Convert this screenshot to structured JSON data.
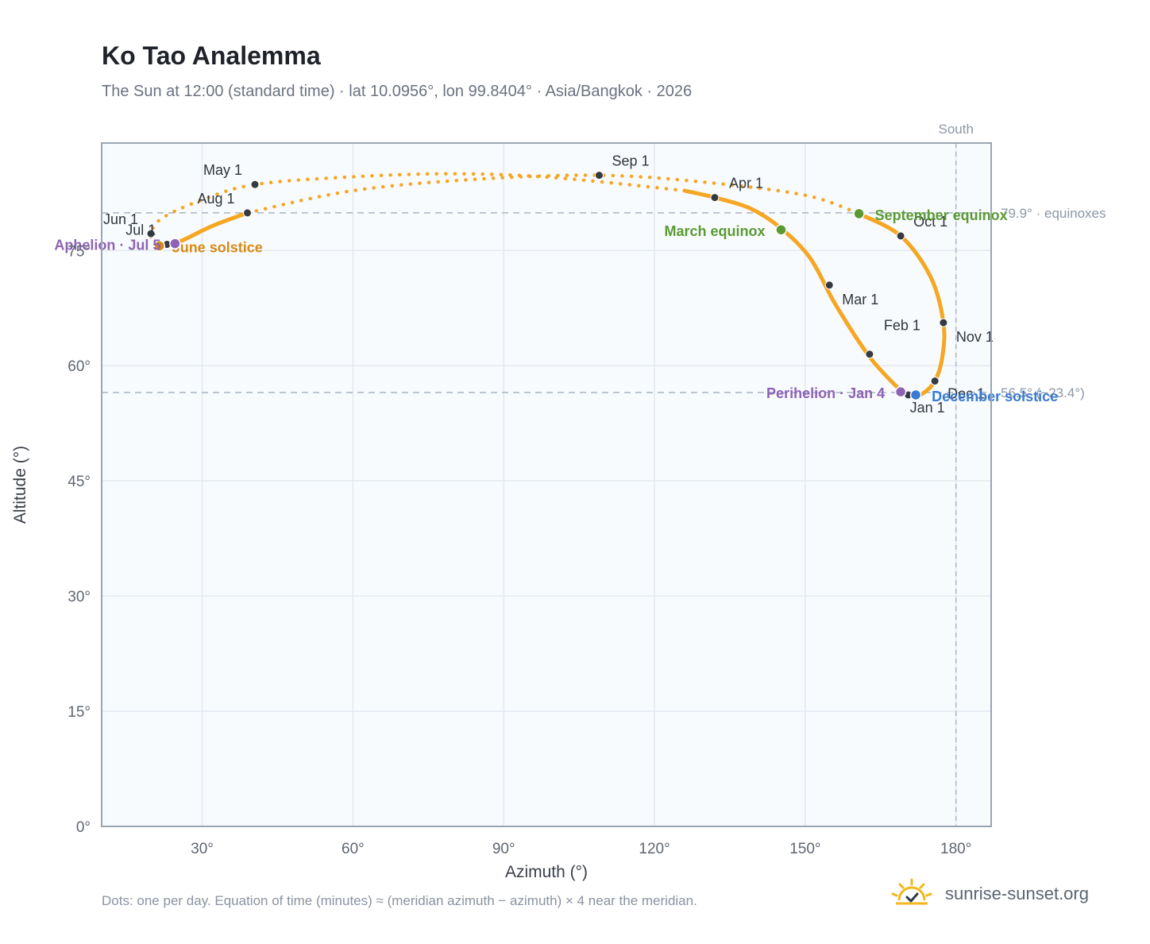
{
  "title": "Ko Tao Analemma",
  "subtitle": "The Sun at 12:00 (standard time) · lat 10.0956°, lon 99.8404° · Asia/Bangkok · 2026",
  "footnote": "Dots: one per day. Equation of time (minutes) ≈ (meridian azimuth − azimuth) × 4 near the meridian.",
  "brand": {
    "name": "sunrise-sunset.org",
    "icon": "sun-logo-icon"
  },
  "colors": {
    "curve": "#f5a623",
    "month_marker": "#343a40",
    "solstice_june": "#d88a14",
    "solstice_december": "#3a7bd5",
    "equinox": "#5b9a33",
    "apsis": "#8e62b5",
    "plot_bg": "#f8fbfe",
    "grid": "#e3e9f0",
    "reference": "#a8b4c2"
  },
  "chart_data": {
    "type": "scatter",
    "xlabel": "Azimuth (°)",
    "ylabel": "Altitude (°)",
    "xlim": [
      10,
      187
    ],
    "ylim": [
      0,
      89
    ],
    "x_ticks": [
      30,
      60,
      90,
      120,
      150,
      180
    ],
    "x_tick_labels": [
      "30°",
      "60°",
      "90°",
      "120°",
      "150°",
      "180°"
    ],
    "y_ticks": [
      0,
      15,
      30,
      45,
      60,
      75
    ],
    "y_tick_labels": [
      "0°",
      "15°",
      "30°",
      "45°",
      "60°",
      "75°"
    ],
    "grid": true,
    "legend": "none",
    "reference_lines": [
      {
        "axis": "x",
        "value": 180,
        "label": "South"
      },
      {
        "axis": "y",
        "value": 79.9,
        "label": "79.9° · equinoxes"
      },
      {
        "axis": "y",
        "value": 56.5,
        "label": "56.5° (−23.4°)"
      }
    ],
    "month_markers": [
      {
        "label": "Jan 1",
        "x": 170.5,
        "y": 56.2
      },
      {
        "label": "Feb 1",
        "x": 162.8,
        "y": 61.5
      },
      {
        "label": "Mar 1",
        "x": 154.8,
        "y": 70.5
      },
      {
        "label": "Apr 1",
        "x": 132.0,
        "y": 81.9
      },
      {
        "label": "May 1",
        "x": 40.5,
        "y": 83.6
      },
      {
        "label": "Jun 1",
        "x": 19.8,
        "y": 77.2
      },
      {
        "label": "Jul 1",
        "x": 23.0,
        "y": 75.8
      },
      {
        "label": "Aug 1",
        "x": 39.0,
        "y": 79.9
      },
      {
        "label": "Sep 1",
        "x": 109.0,
        "y": 84.8
      },
      {
        "label": "Oct 1",
        "x": 169.0,
        "y": 76.9
      },
      {
        "label": "Nov 1",
        "x": 177.5,
        "y": 65.6
      },
      {
        "label": "Dec 1",
        "x": 175.8,
        "y": 58.0
      }
    ],
    "events": [
      {
        "label": "June solstice",
        "kind": "solstice_june",
        "x": 21.5,
        "y": 75.6
      },
      {
        "label": "December solstice",
        "kind": "solstice_december",
        "x": 172.0,
        "y": 56.2
      },
      {
        "label": "March equinox",
        "kind": "equinox",
        "x": 145.2,
        "y": 77.7
      },
      {
        "label": "September equinox",
        "kind": "equinox",
        "x": 160.7,
        "y": 79.8
      },
      {
        "label": "Aphelion · Jul 5",
        "kind": "apsis",
        "x": 24.6,
        "y": 75.9
      },
      {
        "label": "Perihelion · Jan 4",
        "kind": "apsis",
        "x": 169.0,
        "y": 56.6
      }
    ],
    "series": [
      {
        "segment": "solid",
        "points": [
          [
            169.5,
            56.4
          ],
          [
            163,
            61
          ],
          [
            156,
            68
          ],
          [
            151,
            74
          ],
          [
            145,
            78
          ],
          [
            139,
            80.5
          ],
          [
            132,
            81.9
          ],
          [
            126,
            82.8
          ]
        ]
      },
      {
        "segment": "dotted",
        "points": [
          [
            126,
            82.8
          ],
          [
            100,
            84.5
          ],
          [
            80,
            85.0
          ],
          [
            60,
            84.6
          ],
          [
            40.5,
            83.6
          ],
          [
            30,
            81.6
          ],
          [
            22,
            79.2
          ],
          [
            19.8,
            77.2
          ],
          [
            20.5,
            76.0
          ],
          [
            21.5,
            75.6
          ]
        ]
      },
      {
        "segment": "solid",
        "points": [
          [
            21.5,
            75.6
          ],
          [
            23,
            75.8
          ],
          [
            26,
            76.3
          ],
          [
            32,
            78.2
          ],
          [
            39,
            79.9
          ]
        ]
      },
      {
        "segment": "dotted",
        "points": [
          [
            39,
            79.9
          ],
          [
            60,
            82.8
          ],
          [
            85,
            84.3
          ],
          [
            109,
            84.8
          ],
          [
            130,
            83.9
          ],
          [
            150,
            82.2
          ],
          [
            160.7,
            79.8
          ]
        ]
      },
      {
        "segment": "solid",
        "points": [
          [
            160.7,
            79.8
          ],
          [
            169,
            76.9
          ],
          [
            175,
            71.5
          ],
          [
            177.5,
            65.6
          ],
          [
            177.3,
            61.2
          ],
          [
            175.8,
            58.0
          ],
          [
            173.2,
            56.3
          ],
          [
            171,
            56.0
          ],
          [
            169.5,
            56.4
          ]
        ]
      }
    ]
  }
}
